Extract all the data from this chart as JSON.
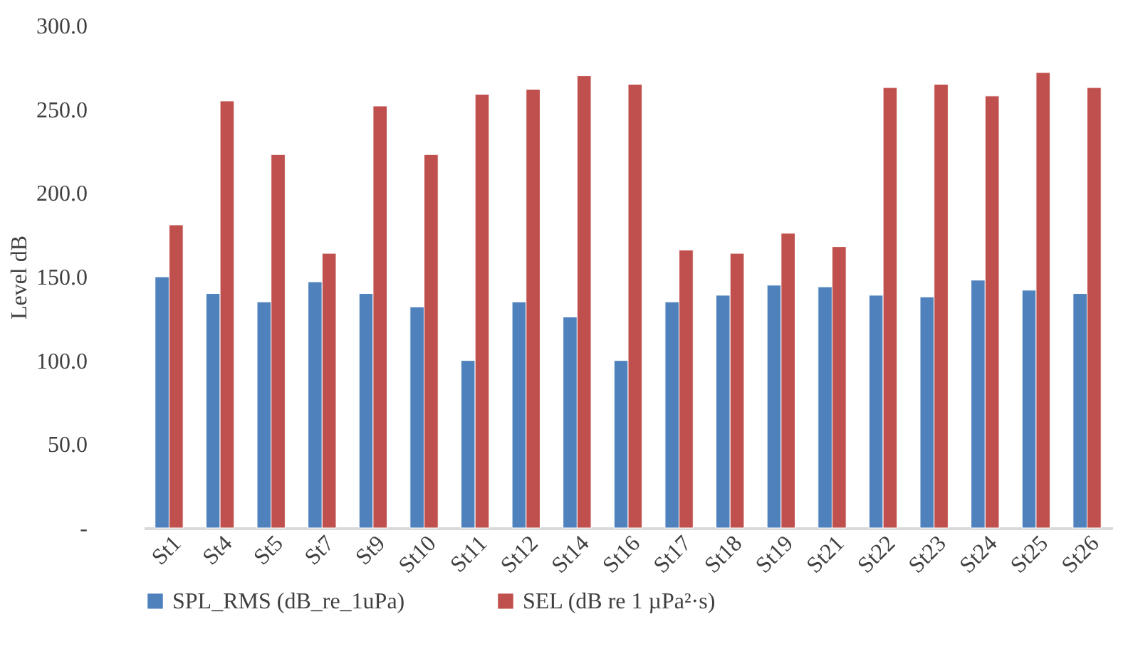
{
  "chart_data": {
    "type": "bar",
    "ylabel": "Level dB",
    "categories": [
      "St1",
      "St4",
      "St5",
      "St7",
      "St9",
      "St10",
      "St11",
      "St12",
      "St14",
      "St16",
      "St17",
      "St18",
      "St19",
      "St21",
      "St22",
      "St23",
      "St24",
      "St25",
      "St26"
    ],
    "series": [
      {
        "name": "SPL_RMS (dB_re_1uPa)",
        "color": "#4f81bd",
        "values": [
          150,
          140,
          135,
          147,
          140,
          132,
          100,
          135,
          126,
          100,
          135,
          139,
          145,
          144,
          139,
          138,
          148,
          142,
          140
        ]
      },
      {
        "name": "SEL (dB re 1 µPa²·s)",
        "color": "#c0504d",
        "values": [
          181,
          255,
          223,
          164,
          252,
          223,
          259,
          262,
          270,
          265,
          166,
          164,
          176,
          168,
          263,
          265,
          258,
          272,
          263
        ]
      }
    ],
    "ylim": [
      0,
      300
    ],
    "yticks": [
      {
        "value": 0,
        "label": "-"
      },
      {
        "value": 50,
        "label": "50.0"
      },
      {
        "value": 100,
        "label": "100.0"
      },
      {
        "value": 150,
        "label": "150.0"
      },
      {
        "value": 200,
        "label": "200.0"
      },
      {
        "value": 250,
        "label": "250.0"
      },
      {
        "value": 300,
        "label": "300.0"
      }
    ],
    "grid": false,
    "legend": "bottom"
  }
}
